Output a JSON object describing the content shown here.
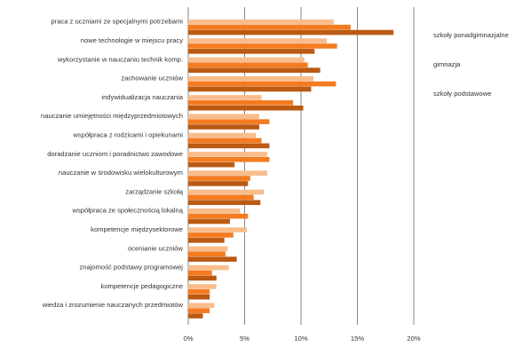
{
  "chart_data": {
    "type": "bar",
    "orientation": "horizontal",
    "categories": [
      "praca z uczniami ze specjalnymi potrzebami",
      "nowe technologie w miejscu pracy",
      "wykorzystanie w nauczaniu technik komp.",
      "zachowanie uczniów",
      "indywidualizacja nauczania",
      "nauczanie umiejętności międzyprzedmiotowych",
      "współpraca z rodzicami i opiekunami",
      "doradzanie uczniom i poradnictwo zawodowe",
      "nauczanie w środowisku wielokulturowym",
      "zarządzanie szkołą",
      "współpraca ze społecznością lokalną",
      "kompetencje międzysektorowe",
      "ocenianie uczniów",
      "znajomość podstawy programowej",
      "kompetencje pedagogiczne",
      "wiedza i zrozumienie nauczanych przedmiotów"
    ],
    "series": [
      {
        "name": "szkoły ponadgimnazjalne",
        "color": "#f9bd8c",
        "values": [
          12.9,
          12.3,
          10.3,
          11.1,
          6.5,
          6.3,
          6.0,
          7.0,
          7.0,
          6.7,
          4.6,
          5.2,
          3.5,
          3.6,
          2.5,
          2.3
        ]
      },
      {
        "name": "gimnazja",
        "color": "#f47b20",
        "values": [
          14.4,
          13.2,
          10.6,
          13.1,
          9.3,
          7.2,
          6.5,
          7.2,
          5.5,
          5.8,
          5.3,
          4.0,
          3.3,
          2.1,
          1.9,
          1.9
        ]
      },
      {
        "name": "szkoły podstawowe",
        "color": "#bb5a13",
        "values": [
          18.2,
          11.2,
          11.7,
          10.9,
          10.2,
          6.3,
          7.2,
          4.1,
          5.3,
          6.4,
          3.7,
          3.2,
          4.3,
          2.5,
          1.9,
          1.3
        ]
      }
    ],
    "x_ticks": [
      "0%",
      "5%",
      "10%",
      "15%",
      "20%"
    ],
    "xlim": [
      0,
      20
    ],
    "grid": true,
    "legend_position": "right",
    "title": "",
    "xlabel": "",
    "ylabel": ""
  }
}
